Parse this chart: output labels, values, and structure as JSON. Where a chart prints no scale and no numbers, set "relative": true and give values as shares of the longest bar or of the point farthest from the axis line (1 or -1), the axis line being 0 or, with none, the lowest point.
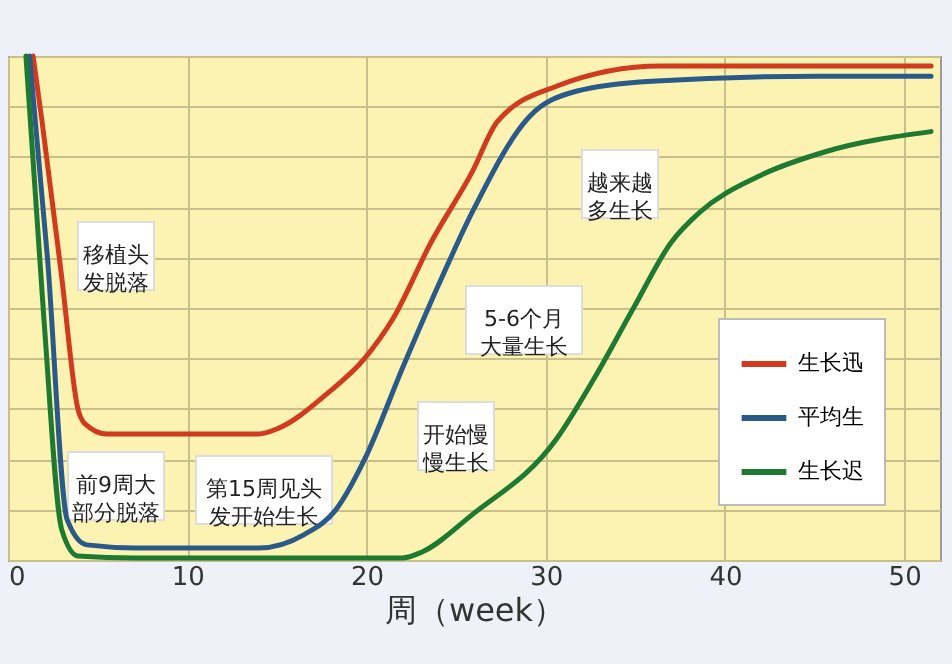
{
  "chart_data": {
    "type": "line",
    "relative": true,
    "xlabel": "周（week）",
    "xlim": [
      0,
      52
    ],
    "xticks": [
      0,
      10,
      20,
      30,
      40,
      50
    ],
    "grid": true,
    "legend": "bottom right",
    "line_style": "solid",
    "marker": "none",
    "series": [
      {
        "name": "生长迅",
        "color": "#d03a1e",
        "x": [
          1.4,
          1.9,
          3.0,
          3.9,
          4.3,
          5.5,
          7.1,
          14,
          15,
          17.8,
          19.9,
          21.5,
          23.6,
          25.9,
          27.3,
          30.6,
          36.4,
          51.5
        ],
        "values": [
          1.0,
          0.87,
          0.56,
          0.3,
          0.27,
          0.25,
          0.25,
          0.25,
          0.26,
          0.33,
          0.4,
          0.48,
          0.63,
          0.77,
          0.87,
          0.94,
          0.98,
          0.98
        ]
      },
      {
        "name": "平均生",
        "color": "#2a5a8a",
        "x": [
          1.2,
          2.2,
          3.3,
          4.4,
          7.1,
          14,
          16.5,
          18.3,
          19.9,
          22,
          24.2,
          25.9,
          29.1,
          31.7,
          35.9,
          45.2,
          51.5
        ],
        "values": [
          1.0,
          0.6,
          0.08,
          0.03,
          0.024,
          0.024,
          0.05,
          0.1,
          0.2,
          0.38,
          0.56,
          0.69,
          0.88,
          0.93,
          0.95,
          0.96,
          0.96
        ]
      },
      {
        "name": "生长迟",
        "color": "#1e7a30",
        "x": [
          1,
          2,
          3,
          3.9,
          7.1,
          22,
          23.1,
          25.9,
          30.6,
          32.7,
          34.9,
          37,
          38.6,
          41.8,
          45.6,
          51.5
        ],
        "values": [
          1.0,
          0.48,
          0.06,
          0.008,
          0.004,
          0.004,
          0.016,
          0.09,
          0.24,
          0.36,
          0.5,
          0.63,
          0.69,
          0.76,
          0.81,
          0.85
        ]
      }
    ],
    "annotations": [
      "移植头发脱落",
      "前9周大部分脱落",
      "第15周见头发开始生长",
      "开始慢慢生长",
      "5-6个月大量生长",
      "越来越多生长"
    ]
  }
}
